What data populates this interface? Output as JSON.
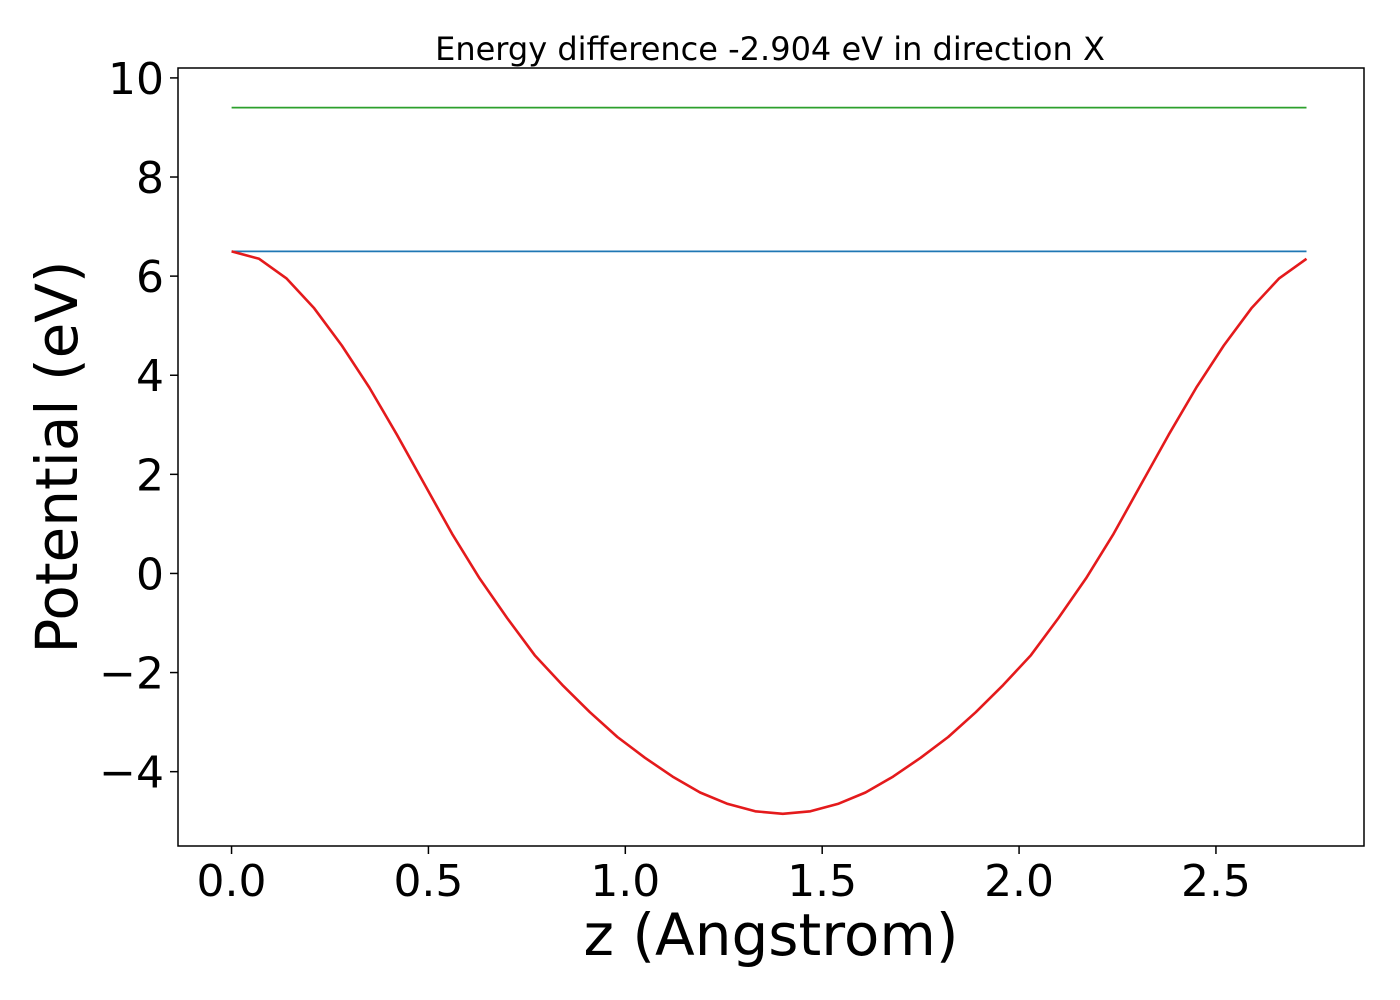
{
  "chart_data": {
    "type": "line",
    "title": "Energy difference -2.904 eV in direction X",
    "xlabel": "z (Angstrom)",
    "ylabel": "Potential (eV)",
    "xlim": [
      -0.136,
      2.876
    ],
    "ylim": [
      -5.5,
      10.2
    ],
    "xticks": [
      0.0,
      0.5,
      1.0,
      1.5,
      2.0,
      2.5
    ],
    "xtick_labels": [
      "0.0",
      "0.5",
      "1.0",
      "1.5",
      "2.0",
      "2.5"
    ],
    "yticks": [
      -4,
      -2,
      0,
      2,
      4,
      6,
      8,
      10
    ],
    "ytick_labels": [
      "−4",
      "−2",
      "0",
      "2",
      "4",
      "6",
      "8",
      "10"
    ],
    "grid": false,
    "legend": false,
    "series": [
      {
        "color": "#2ca02c",
        "x": [
          0.0,
          2.73
        ],
        "y": [
          9.4,
          9.4
        ]
      },
      {
        "color": "#1f77b4",
        "x": [
          0.0,
          2.73
        ],
        "y": [
          6.5,
          6.5
        ]
      },
      {
        "color": "#e41a1c",
        "x": [
          0.0,
          0.07,
          0.14,
          0.21,
          0.28,
          0.35,
          0.42,
          0.49,
          0.56,
          0.63,
          0.7,
          0.77,
          0.84,
          0.91,
          0.98,
          1.05,
          1.12,
          1.19,
          1.26,
          1.33,
          1.4,
          1.47,
          1.54,
          1.61,
          1.68,
          1.75,
          1.82,
          1.89,
          1.96,
          2.03,
          2.1,
          2.17,
          2.24,
          2.31,
          2.38,
          2.45,
          2.52,
          2.59,
          2.66,
          2.73
        ],
        "y": [
          6.5,
          6.35,
          5.95,
          5.35,
          4.6,
          3.75,
          2.8,
          1.8,
          0.8,
          -0.1,
          -0.9,
          -1.65,
          -2.25,
          -2.8,
          -3.3,
          -3.72,
          -4.1,
          -4.42,
          -4.65,
          -4.8,
          -4.85,
          -4.8,
          -4.65,
          -4.42,
          -4.1,
          -3.72,
          -3.3,
          -2.8,
          -2.25,
          -1.65,
          -0.9,
          -0.1,
          0.8,
          1.8,
          2.8,
          3.75,
          4.6,
          5.35,
          5.95,
          6.35
        ]
      }
    ]
  }
}
